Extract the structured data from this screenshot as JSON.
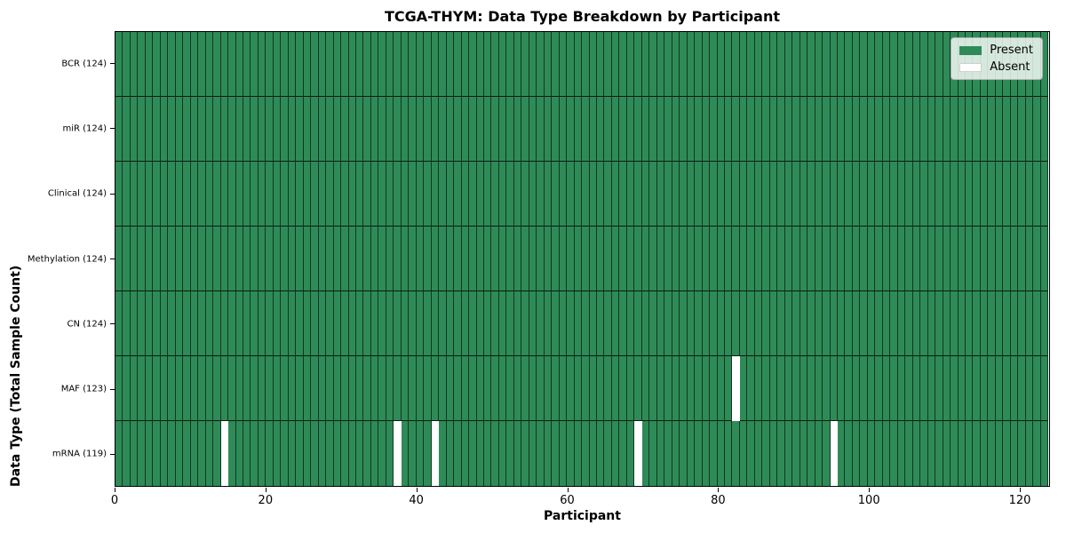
{
  "chart_data": {
    "type": "heatmap",
    "title": "TCGA-THYM: Data Type Breakdown by Participant",
    "xlabel": "Participant",
    "ylabel": "Data Type (Total Sample Count)",
    "n_participants": 124,
    "x_range": [
      0,
      124
    ],
    "x_ticks": [
      0,
      20,
      40,
      60,
      80,
      100,
      120
    ],
    "grid": false,
    "legend_labels": [
      "Present",
      "Absent"
    ],
    "legend_position": "upper right",
    "colors": {
      "present": "#2E8B57",
      "absent": "#FFFFFF",
      "edge": "rgba(0,0,0,0.60)",
      "separator": "rgba(0,0,0,0.80)"
    },
    "rows": [
      {
        "name": "BCR",
        "label": "BCR (124)",
        "total_samples": 124,
        "present_count": 124,
        "absent_participant_indices": []
      },
      {
        "name": "miR",
        "label": "miR (124)",
        "total_samples": 124,
        "present_count": 124,
        "absent_participant_indices": []
      },
      {
        "name": "Clinical",
        "label": "Clinical (124)",
        "total_samples": 124,
        "present_count": 124,
        "absent_participant_indices": []
      },
      {
        "name": "Methylation",
        "label": "Methylation (124)",
        "total_samples": 124,
        "present_count": 124,
        "absent_participant_indices": []
      },
      {
        "name": "CN",
        "label": "CN (124)",
        "total_samples": 124,
        "present_count": 124,
        "absent_participant_indices": []
      },
      {
        "name": "MAF",
        "label": "MAF (123)",
        "total_samples": 123,
        "present_count": 123,
        "absent_participant_indices": [
          82
        ]
      },
      {
        "name": "mRNA",
        "label": "mRNA (119)",
        "total_samples": 119,
        "present_count": 119,
        "absent_participant_indices": [
          14,
          37,
          42,
          69,
          95
        ]
      }
    ]
  }
}
